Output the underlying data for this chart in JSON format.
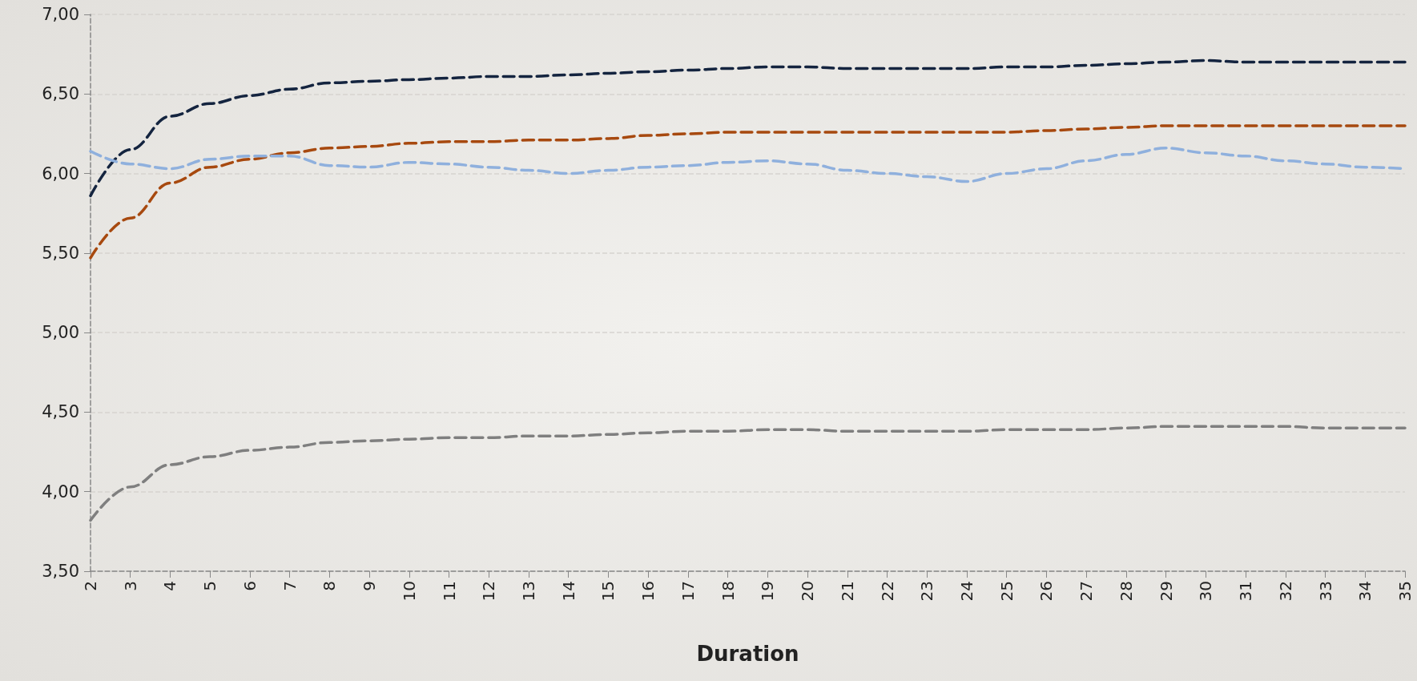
{
  "chart_data": {
    "type": "line",
    "xlabel": "Duration",
    "categories": [
      "2",
      "3",
      "4",
      "5",
      "6",
      "7",
      "8",
      "9",
      "10",
      "11",
      "12",
      "13",
      "14",
      "15",
      "16",
      "17",
      "18",
      "19",
      "20",
      "21",
      "22",
      "23",
      "24",
      "25",
      "26",
      "27",
      "28",
      "29",
      "30",
      "31",
      "32",
      "33",
      "34",
      "35"
    ],
    "series": [
      {
        "color": "#14243f",
        "values": [
          5.86,
          6.15,
          6.36,
          6.44,
          6.49,
          6.53,
          6.57,
          6.58,
          6.59,
          6.6,
          6.61,
          6.61,
          6.62,
          6.63,
          6.64,
          6.65,
          6.66,
          6.67,
          6.67,
          6.66,
          6.66,
          6.66,
          6.66,
          6.67,
          6.67,
          6.68,
          6.69,
          6.7,
          6.71,
          6.7,
          6.7,
          6.7,
          6.7,
          6.7
        ]
      },
      {
        "color": "#a7490f",
        "values": [
          5.47,
          5.72,
          5.94,
          6.04,
          6.09,
          6.13,
          6.16,
          6.17,
          6.19,
          6.2,
          6.2,
          6.21,
          6.21,
          6.22,
          6.24,
          6.25,
          6.26,
          6.26,
          6.26,
          6.26,
          6.26,
          6.26,
          6.26,
          6.26,
          6.27,
          6.28,
          6.29,
          6.3,
          6.3,
          6.3,
          6.3,
          6.3,
          6.3,
          6.3
        ]
      },
      {
        "color": "#8fb0dd",
        "values": [
          6.14,
          6.06,
          6.03,
          6.09,
          6.11,
          6.11,
          6.05,
          6.04,
          6.07,
          6.06,
          6.04,
          6.02,
          6.0,
          6.02,
          6.04,
          6.05,
          6.07,
          6.08,
          6.06,
          6.02,
          6.0,
          5.98,
          5.95,
          6.0,
          6.03,
          6.08,
          6.12,
          6.16,
          6.13,
          6.11,
          6.08,
          6.06,
          6.04,
          6.03
        ]
      },
      {
        "color": "#7f7f7f",
        "values": [
          3.82,
          4.03,
          4.17,
          4.22,
          4.26,
          4.28,
          4.31,
          4.32,
          4.33,
          4.34,
          4.34,
          4.35,
          4.35,
          4.36,
          4.37,
          4.38,
          4.38,
          4.39,
          4.39,
          4.38,
          4.38,
          4.38,
          4.38,
          4.39,
          4.39,
          4.39,
          4.4,
          4.41,
          4.41,
          4.41,
          4.41,
          4.4,
          4.4,
          4.4
        ]
      }
    ],
    "ylim": [
      3.5,
      7
    ],
    "yticks": [
      {
        "value": 3.5,
        "label": "3,50"
      },
      {
        "value": 4,
        "label": "4,00"
      },
      {
        "value": 4.5,
        "label": "4,50"
      },
      {
        "value": 5,
        "label": "5,00"
      },
      {
        "value": 5.5,
        "label": "5,50"
      },
      {
        "value": 6,
        "label": "6,00"
      },
      {
        "value": 6.5,
        "label": "6,50"
      },
      {
        "value": 7,
        "label": "7,00"
      }
    ],
    "grid": "y",
    "marker": "none",
    "line_style": "dashed"
  }
}
